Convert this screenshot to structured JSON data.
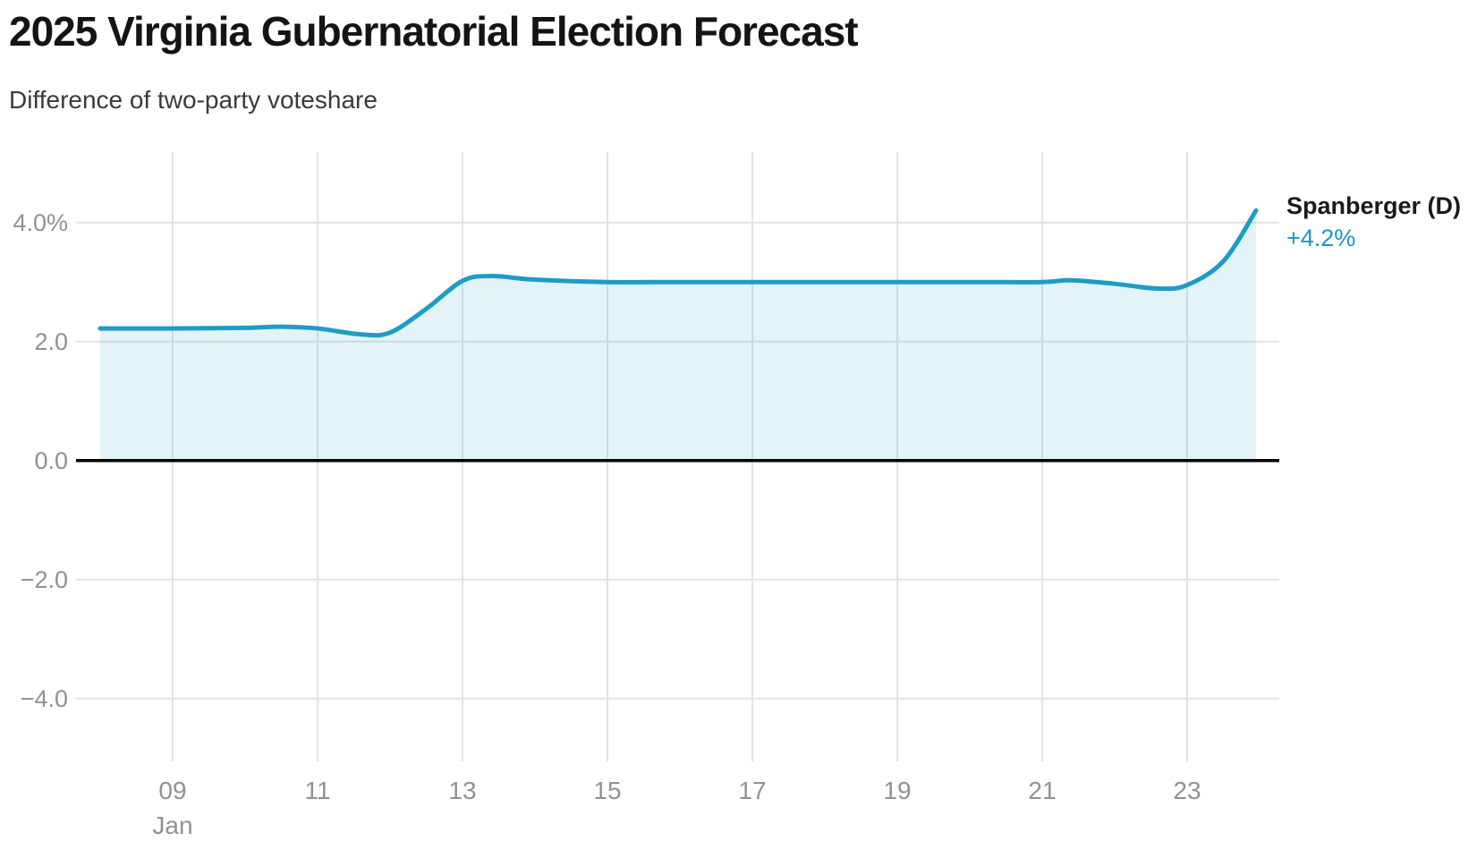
{
  "chart_data": {
    "type": "area",
    "title": "2025 Virginia Gubernatorial Election Forecast",
    "subtitle": "Difference of two-party voteshare",
    "series": [
      {
        "name": "Spanberger (D)",
        "x": [
          8,
          9,
          10,
          10.5,
          11,
          11.6,
          12,
          12.5,
          13,
          13.4,
          14,
          15,
          16,
          17,
          18,
          19,
          20,
          21,
          21.4,
          22,
          22.6,
          23,
          23.5,
          23.95
        ],
        "y": [
          2.22,
          2.22,
          2.23,
          2.25,
          2.22,
          2.12,
          2.15,
          2.55,
          3.02,
          3.1,
          3.04,
          3.0,
          3.0,
          3.0,
          3.0,
          3.0,
          3.0,
          3.0,
          3.03,
          2.97,
          2.89,
          2.95,
          3.35,
          4.2
        ]
      }
    ],
    "x_axis": {
      "month_label": "Jan",
      "ticks": [
        {
          "day": 9,
          "label": "09"
        },
        {
          "day": 11,
          "label": "11"
        },
        {
          "day": 13,
          "label": "13"
        },
        {
          "day": 15,
          "label": "15"
        },
        {
          "day": 17,
          "label": "17"
        },
        {
          "day": 19,
          "label": "19"
        },
        {
          "day": 21,
          "label": "21"
        },
        {
          "day": 23,
          "label": "23"
        }
      ]
    },
    "y_axis": {
      "unit": "%",
      "range": [
        -5.1,
        5.2
      ],
      "ticks": [
        {
          "value": 4,
          "label": "4.0%"
        },
        {
          "value": 2,
          "label": "2.0"
        },
        {
          "value": 0,
          "label": "0.0"
        },
        {
          "value": -2,
          "label": "−2.0"
        },
        {
          "value": -4,
          "label": "−4.0"
        }
      ]
    },
    "annotation": {
      "name": "Spanberger (D)",
      "value_label": "+4.2%",
      "final_value": 4.2
    },
    "grid": true,
    "legend_position": "right-of-line-end",
    "colors": {
      "line": "#1d9cc5",
      "area_fill": "rgba(29,156,197,0.12)",
      "grid": "#e3e3e3",
      "zero_line": "#000000",
      "axis_text": "#919191",
      "annotation_value": "#1d96bf"
    }
  }
}
